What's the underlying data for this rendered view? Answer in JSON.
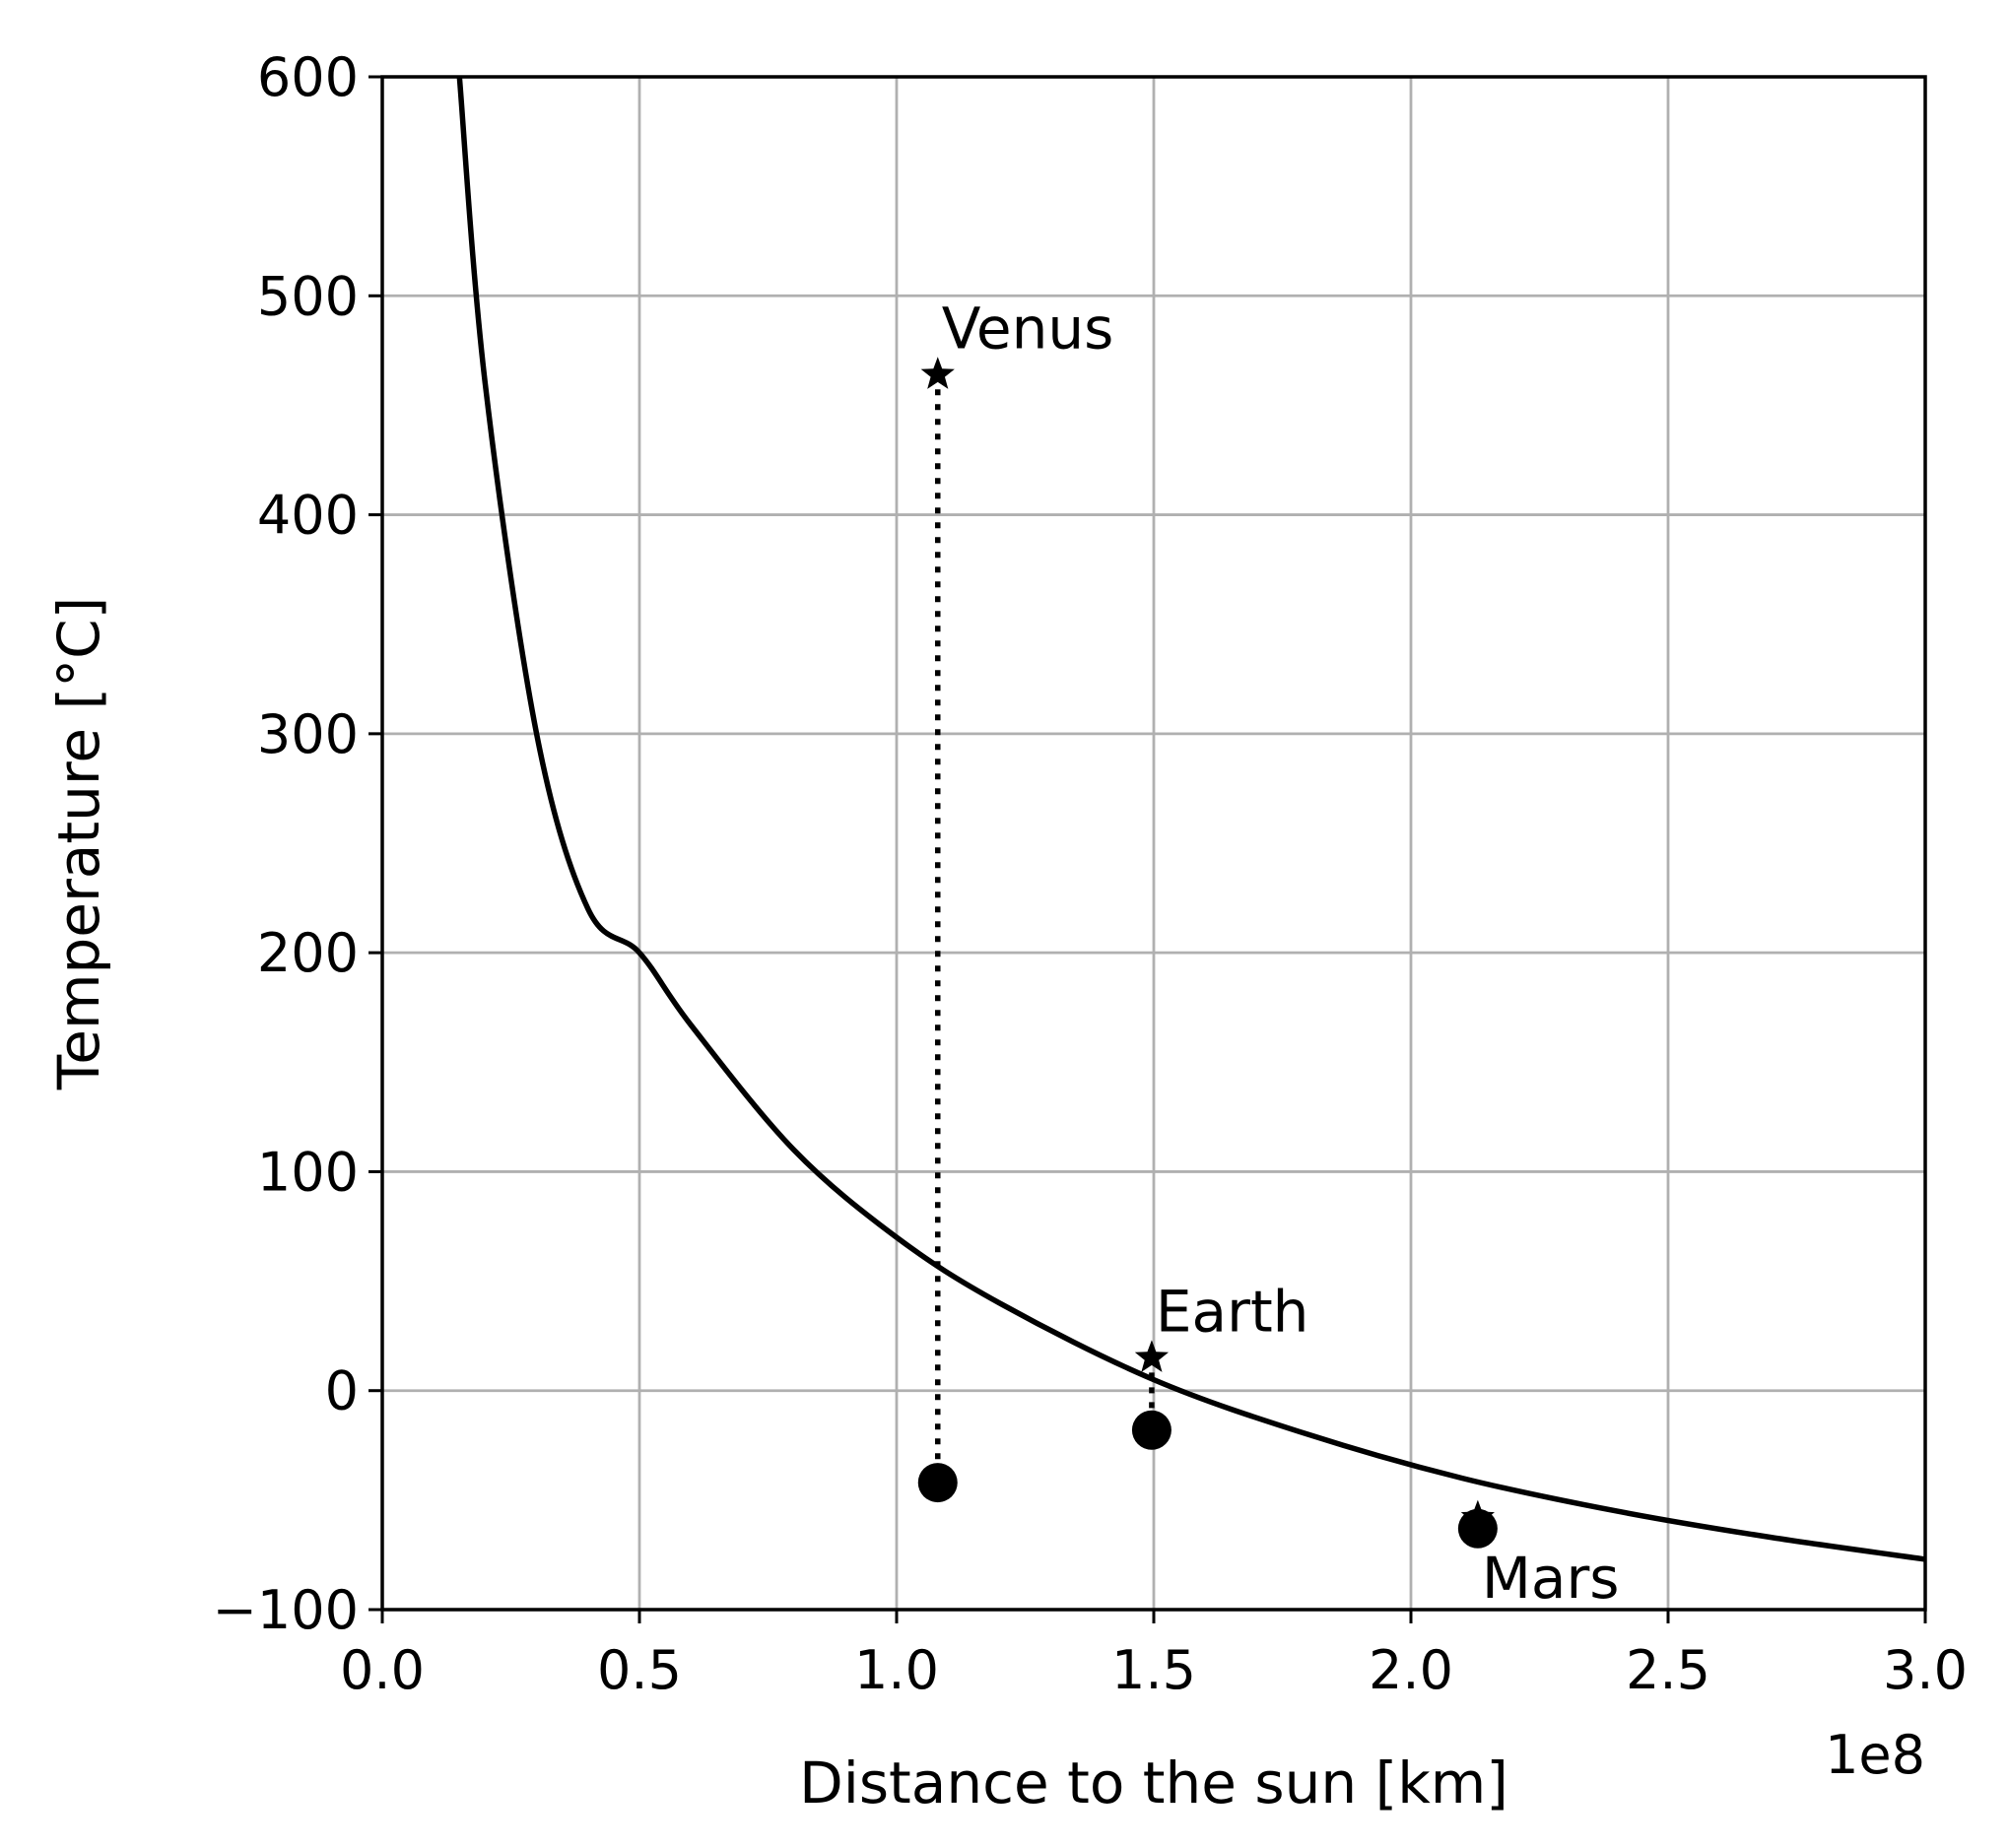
{
  "chart_data": {
    "type": "scatter",
    "xlabel": "Distance to the sun [km]",
    "ylabel": "Temperature [°C]",
    "x_offset_label": "1e8",
    "xlim": [
      0,
      300000000
    ],
    "ylim": [
      -100,
      600
    ],
    "x_ticks": [
      0,
      50000000,
      100000000,
      150000000,
      200000000,
      250000000,
      300000000
    ],
    "x_tick_labels": [
      "0.0",
      "0.5",
      "1.0",
      "1.5",
      "2.0",
      "2.5",
      "3.0"
    ],
    "y_ticks": [
      -100,
      0,
      100,
      200,
      300,
      400,
      500,
      600
    ],
    "y_tick_labels": [
      "−100",
      "0",
      "100",
      "200",
      "300",
      "400",
      "500",
      "600"
    ],
    "grid": true,
    "curve": {
      "style": "solid",
      "x": [
        15000000,
        20000000,
        30000000,
        40000000,
        50000000,
        60000000,
        80000000,
        100000000,
        120000000,
        150000000,
        180000000,
        210000000,
        240000000,
        270000000,
        300000000
      ],
      "y": [
        600,
        460,
        300,
        220,
        200,
        167,
        110,
        70,
        40,
        5,
        -20,
        -40,
        -55,
        -67,
        -77
      ]
    },
    "planets": [
      {
        "name": "Venus",
        "distance": 108000000,
        "observed": 464,
        "predicted": -42
      },
      {
        "name": "Earth",
        "distance": 149600000,
        "observed": 15,
        "predicted": -18
      },
      {
        "name": "Mars",
        "distance": 213000000,
        "observed": -58,
        "predicted": -63
      }
    ]
  }
}
